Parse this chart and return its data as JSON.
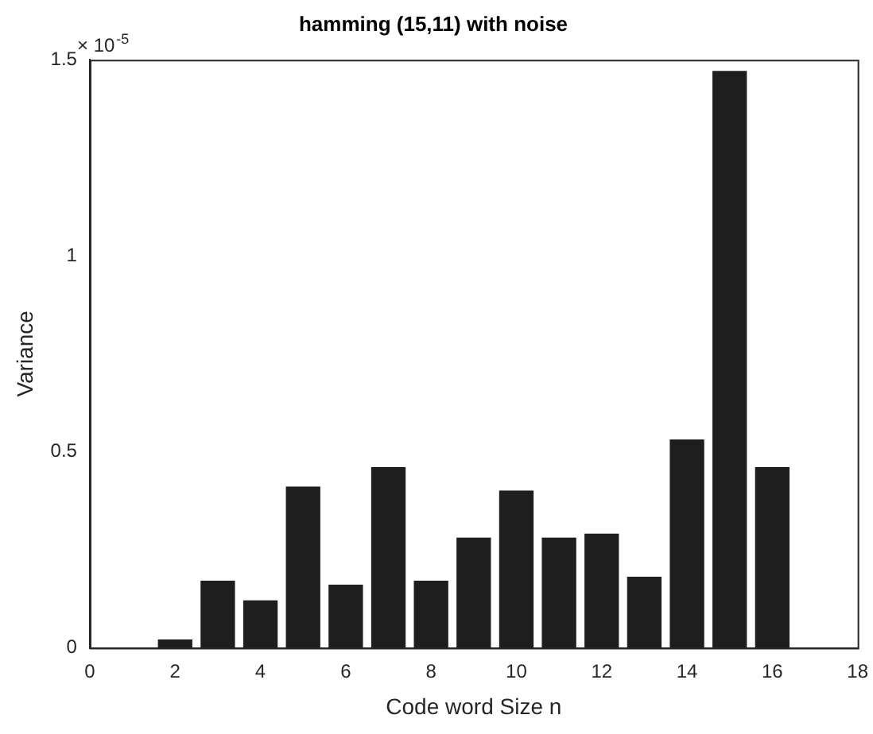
{
  "chart_data": {
    "type": "bar",
    "title": "hamming (15,11) with noise",
    "xlabel": "Code word Size n",
    "ylabel": "Variance",
    "x": [
      2,
      3,
      4,
      5,
      6,
      7,
      8,
      9,
      10,
      11,
      12,
      13,
      14,
      15,
      16
    ],
    "values": [
      0.02,
      0.17,
      0.12,
      0.41,
      0.16,
      0.46,
      0.17,
      0.28,
      0.4,
      0.28,
      0.29,
      0.18,
      0.53,
      1.47,
      0.46
    ],
    "color": "#1e1e1e",
    "xlim": [
      0,
      18
    ],
    "xticks": [
      0,
      2,
      4,
      6,
      8,
      10,
      12,
      14,
      16,
      18
    ],
    "ylim": [
      0,
      1.5
    ],
    "yticks": [
      0,
      0.5,
      1,
      1.5
    ],
    "annotations": [
      "× 10$^{-5}$"
    ],
    "grid": false,
    "legend": false
  }
}
